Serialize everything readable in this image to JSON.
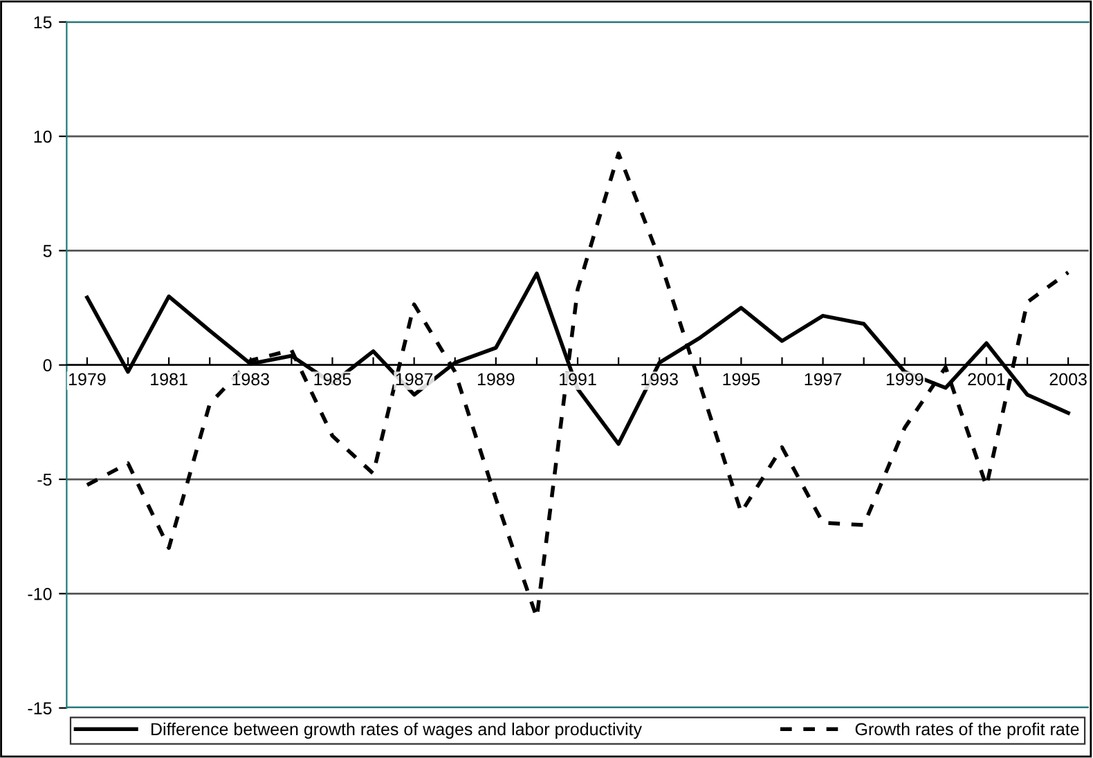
{
  "chart_data": {
    "type": "line",
    "categories": [
      "1979",
      null,
      "1981",
      null,
      "1983",
      null,
      "1985",
      null,
      "1987",
      null,
      "1989",
      null,
      "1991",
      null,
      "1993",
      null,
      "1995",
      null,
      "1997",
      null,
      "1999",
      null,
      "2001",
      null,
      "2003"
    ],
    "series": [
      {
        "name": "Difference between growth rates of wages and labor productivity",
        "color": "#000000",
        "line_style": "solid",
        "values": [
          2.95,
          -0.3,
          3.0,
          1.5,
          0.05,
          0.4,
          -0.8,
          0.6,
          -1.3,
          0.1,
          0.75,
          4.0,
          -1.05,
          -3.45,
          0.1,
          1.2,
          2.5,
          1.05,
          2.15,
          1.8,
          -0.3,
          -1.0,
          0.95,
          -1.3,
          -2.1
        ]
      },
      {
        "name": "Growth rates of the profit rate",
        "color": "#000000",
        "line_style": "dashed",
        "values": [
          -5.25,
          -4.3,
          -8.0,
          -1.7,
          0.2,
          0.65,
          -3.1,
          -4.75,
          2.65,
          -0.3,
          -5.85,
          -11.05,
          3.3,
          9.25,
          4.65,
          -0.9,
          -6.45,
          -3.6,
          -6.9,
          -7.0,
          -2.75,
          -0.1,
          -5.3,
          2.75,
          4.05
        ]
      }
    ],
    "ylim": [
      -15,
      15
    ],
    "yticks": [
      -15,
      -10,
      -5,
      0,
      5,
      10,
      15
    ],
    "grid": "y",
    "legend": "bottom",
    "marker": "none"
  }
}
